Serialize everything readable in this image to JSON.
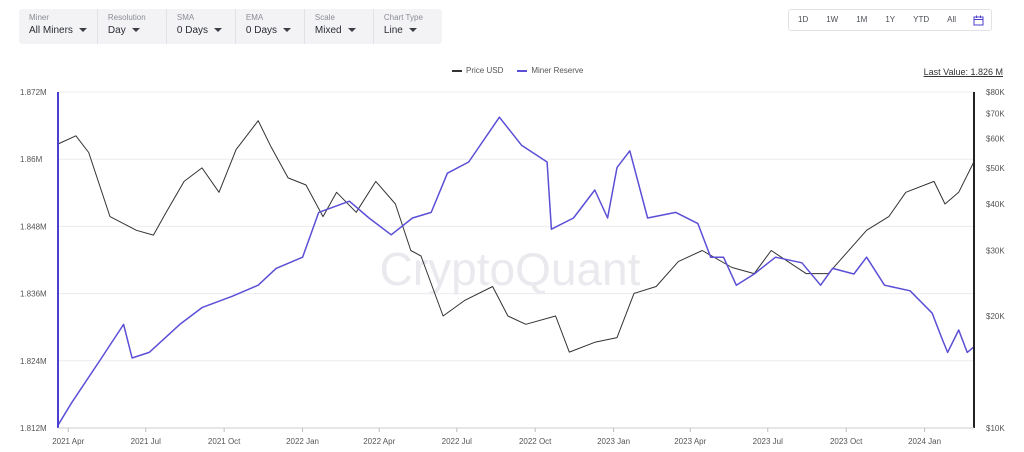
{
  "toolbar": {
    "miner": {
      "label": "Miner",
      "value": "All Miners"
    },
    "resolution": {
      "label": "Resolution",
      "value": "Day"
    },
    "sma": {
      "label": "SMA",
      "value": "0 Days"
    },
    "ema": {
      "label": "EMA",
      "value": "0 Days"
    },
    "scale": {
      "label": "Scale",
      "value": "Mixed"
    },
    "chart_type": {
      "label": "Chart Type",
      "value": "Line"
    }
  },
  "ranges": [
    "1D",
    "1W",
    "1M",
    "1Y",
    "YTD",
    "All"
  ],
  "icons": {
    "calendar": "calendar-icon",
    "dropdown": "chevron-down-icon"
  },
  "watermark": "CryptoQuant",
  "last_value": "Last Value: 1.826 M",
  "colors": {
    "price": "#333333",
    "reserve": "#5b4fd6",
    "axis_bar": "#4b3fd1"
  },
  "chart_data": {
    "type": "line",
    "title": "",
    "left_axis": {
      "ticks": [
        "1.812M",
        "1.824M",
        "1.836M",
        "1.848M",
        "1.86M",
        "1.872M"
      ],
      "ylim": [
        1.812,
        1.872
      ]
    },
    "right_axis": {
      "scale": "log",
      "ticks": [
        "$10K",
        "$20K",
        "$30K",
        "$40K",
        "$50K",
        "$60K",
        "$70K",
        "$80K"
      ],
      "ylim": [
        10000,
        80000
      ]
    },
    "x_ticks": [
      "2021 Apr",
      "2021 Jul",
      "2021 Oct",
      "2022 Jan",
      "2022 Apr",
      "2022 Jul",
      "2022 Oct",
      "2023 Jan",
      "2023 Apr",
      "2023 Jul",
      "2023 Oct",
      "2024 Jan"
    ],
    "x_range": [
      "2021-03-20",
      "2024-02-28"
    ],
    "grid": true,
    "legend_position": "top-center",
    "series": [
      {
        "name": "Price USD",
        "axis": "right",
        "x": [
          "2021-03-20",
          "2021-04-10",
          "2021-04-25",
          "2021-05-20",
          "2021-06-20",
          "2021-07-10",
          "2021-07-25",
          "2021-08-15",
          "2021-09-05",
          "2021-09-25",
          "2021-10-15",
          "2021-11-10",
          "2021-11-25",
          "2021-12-15",
          "2022-01-05",
          "2022-01-25",
          "2022-02-10",
          "2022-03-05",
          "2022-03-28",
          "2022-04-20",
          "2022-05-08",
          "2022-05-20",
          "2022-06-15",
          "2022-07-10",
          "2022-08-12",
          "2022-08-30",
          "2022-09-20",
          "2022-10-25",
          "2022-11-10",
          "2022-12-10",
          "2023-01-05",
          "2023-01-25",
          "2023-02-20",
          "2023-03-18",
          "2023-04-15",
          "2023-05-20",
          "2023-06-15",
          "2023-07-05",
          "2023-08-15",
          "2023-09-10",
          "2023-10-25",
          "2023-11-20",
          "2023-12-10",
          "2024-01-12",
          "2024-01-25",
          "2024-02-10",
          "2024-02-28"
        ],
        "y": [
          58000,
          61000,
          55000,
          37000,
          34000,
          33000,
          38000,
          46000,
          50000,
          43000,
          56000,
          67000,
          57000,
          47000,
          45000,
          37000,
          43000,
          38000,
          46000,
          40000,
          30000,
          29000,
          20000,
          22000,
          24000,
          20000,
          19000,
          20000,
          16000,
          17000,
          17500,
          23000,
          24000,
          28000,
          30000,
          27000,
          26000,
          30000,
          26000,
          26000,
          34000,
          37000,
          43000,
          46000,
          40000,
          43000,
          52000
        ]
      },
      {
        "name": "Miner Reserve",
        "axis": "left",
        "x": [
          "2021-03-20",
          "2021-04-05",
          "2021-05-10",
          "2021-06-05",
          "2021-06-15",
          "2021-07-05",
          "2021-08-10",
          "2021-09-05",
          "2021-10-10",
          "2021-11-10",
          "2021-12-01",
          "2022-01-01",
          "2022-01-20",
          "2022-02-25",
          "2022-03-20",
          "2022-04-15",
          "2022-05-10",
          "2022-06-01",
          "2022-06-20",
          "2022-07-15",
          "2022-08-20",
          "2022-09-15",
          "2022-10-15",
          "2022-10-20",
          "2022-11-15",
          "2022-12-10",
          "2022-12-25",
          "2023-01-05",
          "2023-01-20",
          "2023-02-10",
          "2023-03-15",
          "2023-04-10",
          "2023-04-25",
          "2023-05-10",
          "2023-05-25",
          "2023-06-15",
          "2023-07-10",
          "2023-08-10",
          "2023-09-01",
          "2023-09-15",
          "2023-10-10",
          "2023-10-25",
          "2023-11-15",
          "2023-12-15",
          "2024-01-10",
          "2024-01-20",
          "2024-01-28",
          "2024-02-10",
          "2024-02-20",
          "2024-02-28"
        ],
        "y": [
          1.8125,
          1.8165,
          1.8245,
          1.8305,
          1.8245,
          1.8255,
          1.8305,
          1.8335,
          1.8355,
          1.8375,
          1.8405,
          1.8425,
          1.8505,
          1.8525,
          1.8495,
          1.8465,
          1.8495,
          1.8505,
          1.8575,
          1.8595,
          1.8675,
          1.8625,
          1.8595,
          1.8475,
          1.8495,
          1.8545,
          1.8495,
          1.8585,
          1.8615,
          1.8495,
          1.8505,
          1.8485,
          1.8425,
          1.8425,
          1.8375,
          1.8395,
          1.8425,
          1.8415,
          1.8375,
          1.8405,
          1.8395,
          1.8425,
          1.8375,
          1.8365,
          1.8325,
          1.8285,
          1.8255,
          1.8295,
          1.8255,
          1.8265
        ]
      }
    ]
  }
}
